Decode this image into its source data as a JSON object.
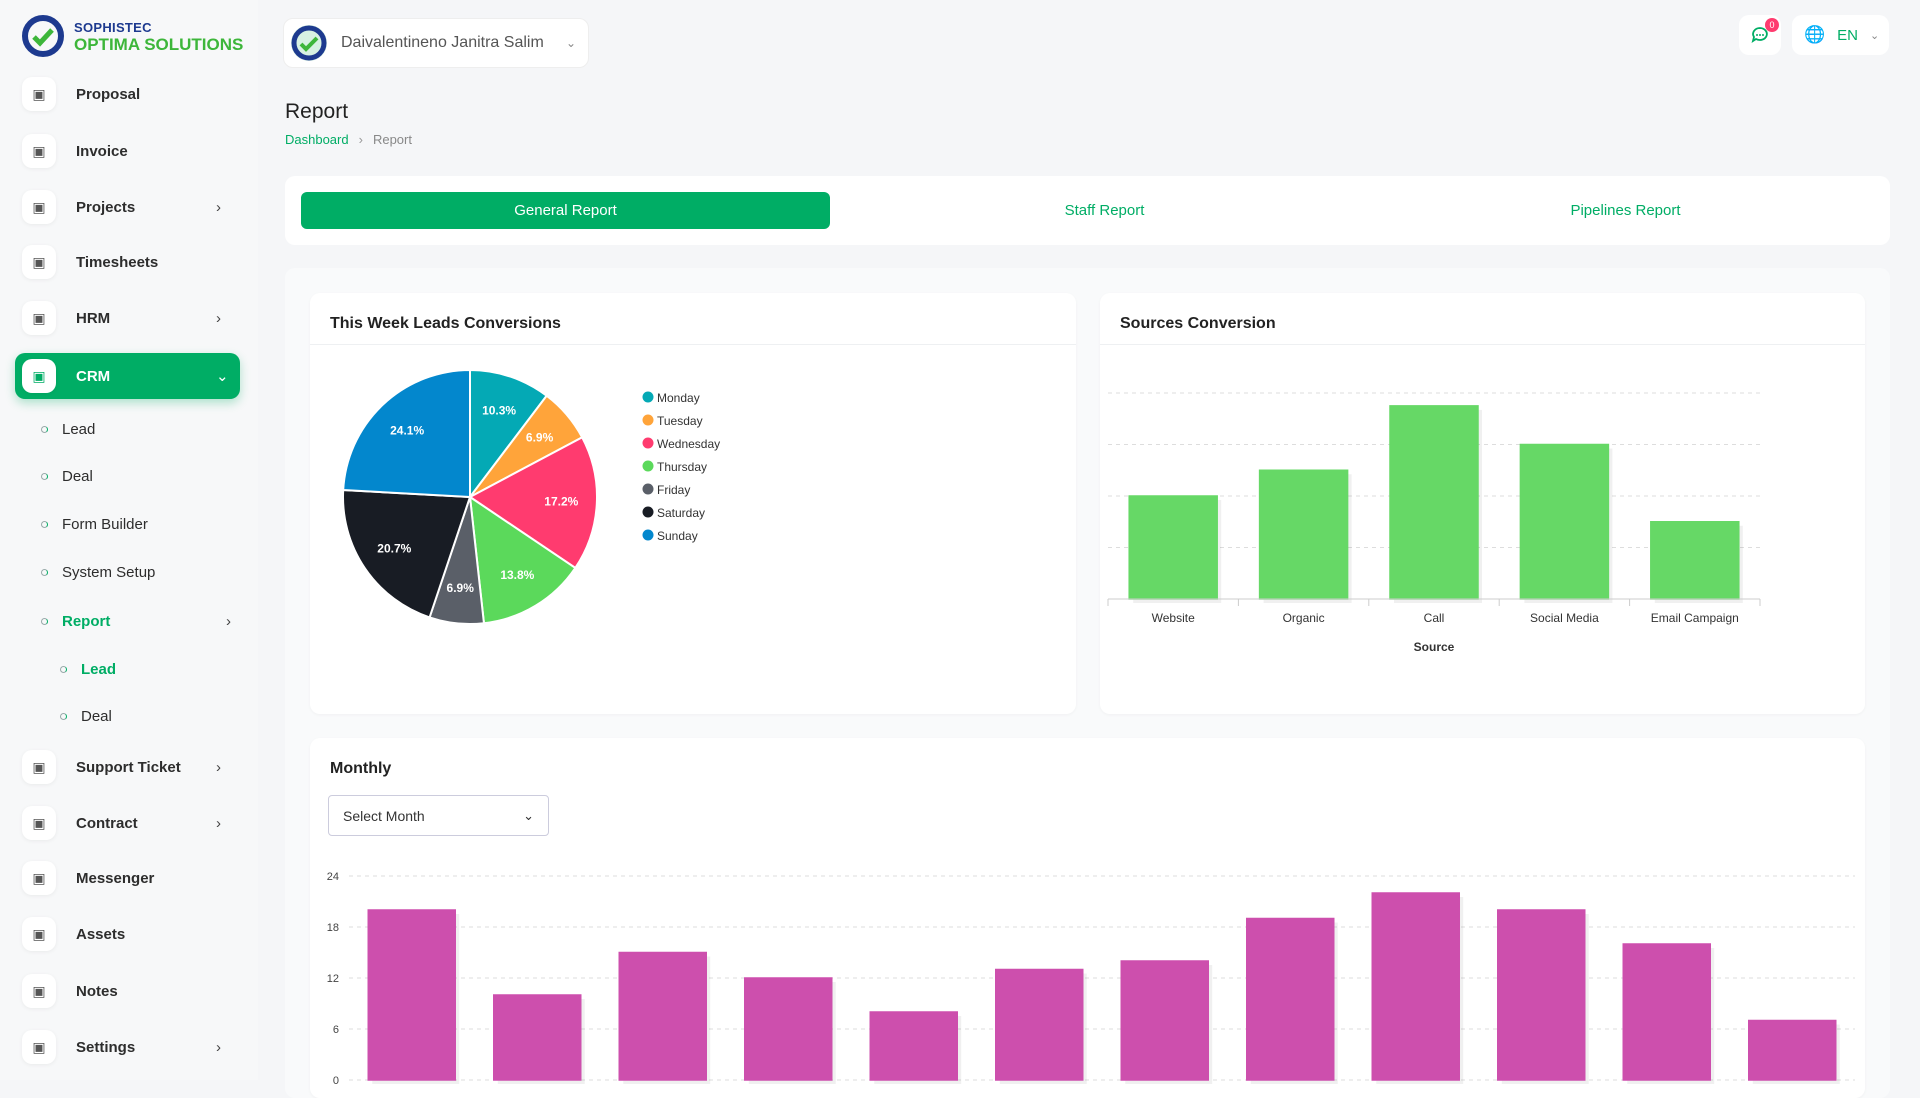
{
  "brand": {
    "line1": "SOPHISTEC",
    "line2": "OPTIMA SOLUTIONS"
  },
  "header": {
    "company": "Daivalentineno Janitra Salim",
    "notifications": "0",
    "language": "EN"
  },
  "sidebar": {
    "items": [
      {
        "label": "Proposal",
        "icon": "proposal-icon"
      },
      {
        "label": "Invoice",
        "icon": "invoice-icon"
      },
      {
        "label": "Projects",
        "icon": "projects-icon",
        "chevron": true
      },
      {
        "label": "Timesheets",
        "icon": "clock-icon"
      },
      {
        "label": "HRM",
        "icon": "hrm-icon",
        "chevron": true
      },
      {
        "label": "CRM",
        "icon": "crm-icon",
        "chevron": true,
        "active": true
      }
    ],
    "crm_sub": [
      "Lead",
      "Deal",
      "Form Builder",
      "System Setup",
      "Report"
    ],
    "report_sub": [
      "Lead",
      "Deal"
    ],
    "items2": [
      {
        "label": "Support Ticket",
        "icon": "headset-icon",
        "chevron": true
      },
      {
        "label": "Contract",
        "icon": "contract-icon",
        "chevron": true
      },
      {
        "label": "Messenger",
        "icon": "messenger-icon"
      },
      {
        "label": "Assets",
        "icon": "assets-icon"
      },
      {
        "label": "Notes",
        "icon": "notes-icon"
      },
      {
        "label": "Settings",
        "icon": "gear-icon",
        "chevron": true
      }
    ]
  },
  "page": {
    "title": "Report",
    "breadcrumb": [
      "Dashboard",
      "Report"
    ]
  },
  "tabs": [
    "General Report",
    "Staff Report",
    "Pipelines Report"
  ],
  "monthly": {
    "title": "Monthly",
    "select_placeholder": "Select Month"
  },
  "chart_data": [
    {
      "type": "pie",
      "title": "This Week Leads Conversions",
      "legend": "right",
      "categories": [
        "Monday",
        "Tuesday",
        "Wednesday",
        "Thursday",
        "Friday",
        "Saturday",
        "Sunday"
      ],
      "values": [
        10.3,
        6.9,
        17.2,
        13.8,
        6.9,
        20.7,
        24.1
      ],
      "colors": [
        "#04a9b5",
        "#ffa43a",
        "#ff3b6f",
        "#5bd95b",
        "#5a5f68",
        "#181c24",
        "#0387cd"
      ]
    },
    {
      "type": "bar",
      "title": "Sources Conversion",
      "xlabel": "Source",
      "ylabel": "",
      "categories": [
        "Website",
        "Organic",
        "Call",
        "Social Media",
        "Email Campaign"
      ],
      "values": [
        8,
        10,
        15,
        12,
        6
      ],
      "ylim": [
        0,
        16
      ],
      "yticks": [
        0,
        4,
        8,
        12,
        16
      ],
      "grid": true,
      "color": "#66d866"
    },
    {
      "type": "bar",
      "title": "Monthly",
      "values": [
        20,
        10,
        15,
        12,
        8,
        13,
        14,
        19,
        22,
        20,
        16,
        7
      ],
      "ylim": [
        0,
        24
      ],
      "yticks": [
        0,
        6,
        12,
        18,
        24
      ],
      "grid": true,
      "color": "#cd4fad"
    }
  ]
}
